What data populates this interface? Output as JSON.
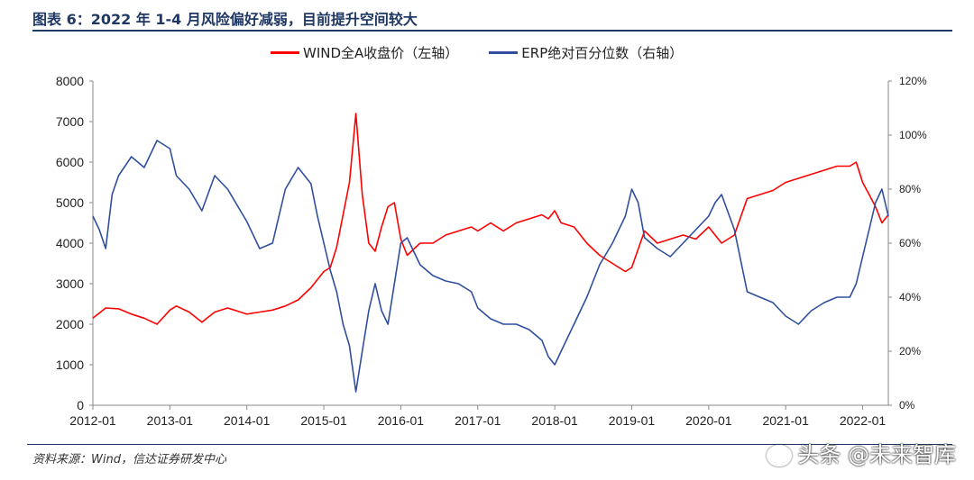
{
  "header": {
    "title": "图表 6：2022 年 1-4 月风险偏好减弱，目前提升空间较大"
  },
  "footer": {
    "source": "资料来源：Wind，信达证券研发中心"
  },
  "watermark": {
    "text": "头条 @未来智库"
  },
  "colors": {
    "red": "#ff0000",
    "blue": "#2f4f9e",
    "title": "#1f3864"
  },
  "chart_data": {
    "type": "line",
    "x_tick_labels": [
      "2012-01",
      "2013-01",
      "2014-01",
      "2015-01",
      "2016-01",
      "2017-01",
      "2018-01",
      "2019-01",
      "2020-01",
      "2021-01",
      "2022-01"
    ],
    "x_range": [
      "2012-01",
      "2022-05"
    ],
    "left_axis": {
      "range": [
        0,
        8000
      ],
      "ticks": [
        "0",
        "1000",
        "2000",
        "3000",
        "4000",
        "5000",
        "6000",
        "7000",
        "8000"
      ]
    },
    "right_axis": {
      "range": [
        0,
        120
      ],
      "ticks": [
        "0%",
        "20%",
        "40%",
        "60%",
        "80%",
        "100%",
        "120%"
      ]
    },
    "series": [
      {
        "name": "WIND全A收盘价（左轴）",
        "axis": "left",
        "color": "#ff0000",
        "points": [
          [
            "2012-01",
            2150
          ],
          [
            "2012-03",
            2400
          ],
          [
            "2012-05",
            2380
          ],
          [
            "2012-07",
            2250
          ],
          [
            "2012-09",
            2150
          ],
          [
            "2012-11",
            2000
          ],
          [
            "2013-01",
            2350
          ],
          [
            "2013-02",
            2450
          ],
          [
            "2013-04",
            2300
          ],
          [
            "2013-06",
            2050
          ],
          [
            "2013-08",
            2300
          ],
          [
            "2013-10",
            2400
          ],
          [
            "2013-12",
            2300
          ],
          [
            "2014-01",
            2250
          ],
          [
            "2014-03",
            2300
          ],
          [
            "2014-05",
            2350
          ],
          [
            "2014-07",
            2450
          ],
          [
            "2014-09",
            2600
          ],
          [
            "2014-11",
            2900
          ],
          [
            "2015-01",
            3300
          ],
          [
            "2015-02",
            3400
          ],
          [
            "2015-03",
            3900
          ],
          [
            "2015-04",
            4700
          ],
          [
            "2015-05",
            5500
          ],
          [
            "2015-06",
            7200
          ],
          [
            "2015-07",
            5200
          ],
          [
            "2015-08",
            4000
          ],
          [
            "2015-09",
            3800
          ],
          [
            "2015-10",
            4400
          ],
          [
            "2015-11",
            4900
          ],
          [
            "2015-12",
            5000
          ],
          [
            "2016-01",
            4100
          ],
          [
            "2016-02",
            3700
          ],
          [
            "2016-04",
            4000
          ],
          [
            "2016-06",
            4000
          ],
          [
            "2016-08",
            4200
          ],
          [
            "2016-10",
            4300
          ],
          [
            "2016-12",
            4400
          ],
          [
            "2017-01",
            4300
          ],
          [
            "2017-03",
            4500
          ],
          [
            "2017-05",
            4300
          ],
          [
            "2017-07",
            4500
          ],
          [
            "2017-09",
            4600
          ],
          [
            "2017-11",
            4700
          ],
          [
            "2017-12",
            4600
          ],
          [
            "2018-01",
            4800
          ],
          [
            "2018-02",
            4500
          ],
          [
            "2018-04",
            4400
          ],
          [
            "2018-06",
            4000
          ],
          [
            "2018-08",
            3700
          ],
          [
            "2018-10",
            3500
          ],
          [
            "2018-12",
            3300
          ],
          [
            "2019-01",
            3400
          ],
          [
            "2019-03",
            4300
          ],
          [
            "2019-05",
            4000
          ],
          [
            "2019-07",
            4100
          ],
          [
            "2019-09",
            4200
          ],
          [
            "2019-11",
            4100
          ],
          [
            "2020-01",
            4400
          ],
          [
            "2020-03",
            4000
          ],
          [
            "2020-05",
            4200
          ],
          [
            "2020-07",
            5100
          ],
          [
            "2020-09",
            5200
          ],
          [
            "2020-11",
            5300
          ],
          [
            "2021-01",
            5500
          ],
          [
            "2021-03",
            5600
          ],
          [
            "2021-05",
            5700
          ],
          [
            "2021-07",
            5800
          ],
          [
            "2021-09",
            5900
          ],
          [
            "2021-11",
            5900
          ],
          [
            "2021-12",
            6000
          ],
          [
            "2022-01",
            5500
          ],
          [
            "2022-02",
            5200
          ],
          [
            "2022-03",
            4900
          ],
          [
            "2022-04",
            4500
          ],
          [
            "2022-05",
            4700
          ]
        ]
      },
      {
        "name": "ERP绝对百分位数（右轴）",
        "axis": "right",
        "color": "#2f4f9e",
        "points": [
          [
            "2012-01",
            70
          ],
          [
            "2012-02",
            65
          ],
          [
            "2012-03",
            58
          ],
          [
            "2012-04",
            78
          ],
          [
            "2012-05",
            85
          ],
          [
            "2012-07",
            92
          ],
          [
            "2012-09",
            88
          ],
          [
            "2012-11",
            98
          ],
          [
            "2013-01",
            95
          ],
          [
            "2013-02",
            85
          ],
          [
            "2013-04",
            80
          ],
          [
            "2013-06",
            72
          ],
          [
            "2013-08",
            85
          ],
          [
            "2013-10",
            80
          ],
          [
            "2013-12",
            72
          ],
          [
            "2014-01",
            68
          ],
          [
            "2014-03",
            58
          ],
          [
            "2014-05",
            60
          ],
          [
            "2014-07",
            80
          ],
          [
            "2014-09",
            88
          ],
          [
            "2014-11",
            82
          ],
          [
            "2014-12",
            70
          ],
          [
            "2015-01",
            60
          ],
          [
            "2015-02",
            50
          ],
          [
            "2015-03",
            42
          ],
          [
            "2015-04",
            30
          ],
          [
            "2015-05",
            22
          ],
          [
            "2015-06",
            5
          ],
          [
            "2015-07",
            20
          ],
          [
            "2015-08",
            35
          ],
          [
            "2015-09",
            45
          ],
          [
            "2015-10",
            35
          ],
          [
            "2015-11",
            30
          ],
          [
            "2015-12",
            45
          ],
          [
            "2016-01",
            60
          ],
          [
            "2016-02",
            62
          ],
          [
            "2016-04",
            52
          ],
          [
            "2016-06",
            48
          ],
          [
            "2016-08",
            46
          ],
          [
            "2016-10",
            45
          ],
          [
            "2016-12",
            42
          ],
          [
            "2017-01",
            36
          ],
          [
            "2017-03",
            32
          ],
          [
            "2017-05",
            30
          ],
          [
            "2017-07",
            30
          ],
          [
            "2017-09",
            28
          ],
          [
            "2017-11",
            24
          ],
          [
            "2017-12",
            18
          ],
          [
            "2018-01",
            15
          ],
          [
            "2018-02",
            20
          ],
          [
            "2018-04",
            30
          ],
          [
            "2018-06",
            40
          ],
          [
            "2018-08",
            52
          ],
          [
            "2018-10",
            60
          ],
          [
            "2018-12",
            70
          ],
          [
            "2019-01",
            80
          ],
          [
            "2019-02",
            75
          ],
          [
            "2019-03",
            62
          ],
          [
            "2019-05",
            58
          ],
          [
            "2019-07",
            55
          ],
          [
            "2019-09",
            60
          ],
          [
            "2019-11",
            65
          ],
          [
            "2020-01",
            70
          ],
          [
            "2020-02",
            75
          ],
          [
            "2020-03",
            78
          ],
          [
            "2020-05",
            65
          ],
          [
            "2020-07",
            42
          ],
          [
            "2020-09",
            40
          ],
          [
            "2020-11",
            38
          ],
          [
            "2021-01",
            33
          ],
          [
            "2021-03",
            30
          ],
          [
            "2021-05",
            35
          ],
          [
            "2021-07",
            38
          ],
          [
            "2021-09",
            40
          ],
          [
            "2021-11",
            40
          ],
          [
            "2021-12",
            45
          ],
          [
            "2022-01",
            55
          ],
          [
            "2022-02",
            65
          ],
          [
            "2022-03",
            75
          ],
          [
            "2022-04",
            80
          ],
          [
            "2022-05",
            70
          ]
        ]
      }
    ]
  }
}
